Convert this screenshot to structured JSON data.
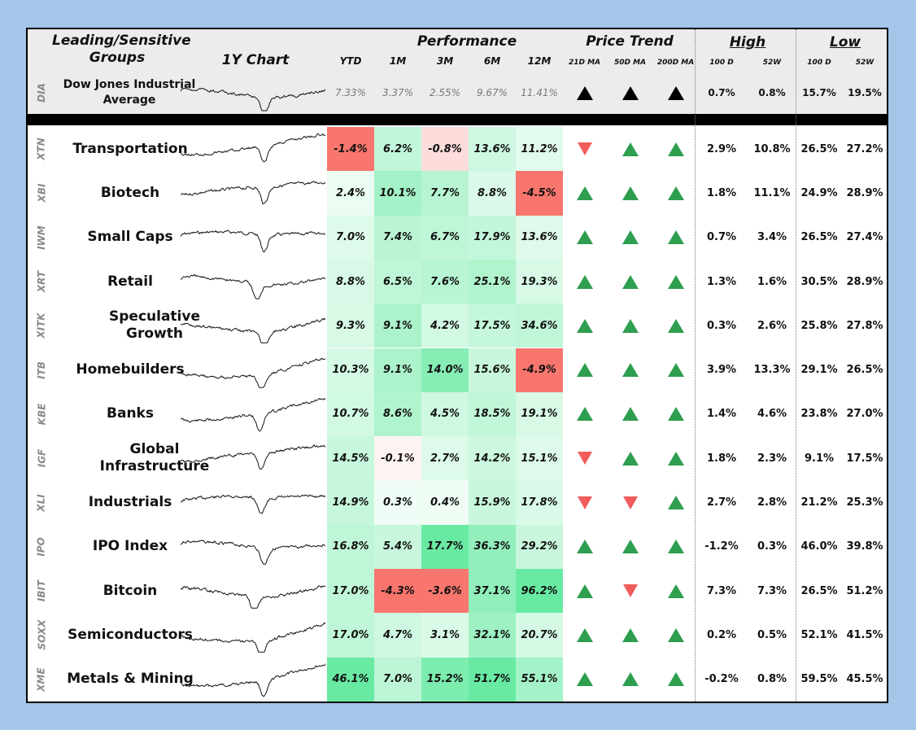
{
  "header": {
    "groups_title": "Leading/Sensitive Groups",
    "chart_title": "1Y Chart",
    "performance_title": "Performance",
    "price_trend_title": "Price Trend",
    "high_title": "High",
    "low_title": "Low",
    "perf_cols": [
      "YTD",
      "1M",
      "3M",
      "6M",
      "12M"
    ],
    "trend_cols": [
      "21D MA",
      "50D MA",
      "200D MA"
    ],
    "high_cols": [
      "100 D",
      "52W"
    ],
    "low_cols": [
      "100 D",
      "52W"
    ]
  },
  "benchmark": {
    "ticker": "DIA",
    "name": "Dow Jones Industrial Average",
    "perf": [
      "7.33%",
      "3.37%",
      "2.55%",
      "9.67%",
      "11.41%"
    ],
    "trend": [
      "up",
      "up",
      "up"
    ],
    "high": [
      "0.7%",
      "0.8%"
    ],
    "low": [
      "15.7%",
      "19.5%"
    ]
  },
  "colors": {
    "background": "#a3c6e9",
    "trend_up": "#2e9e4f",
    "trend_down": "#f25c5c",
    "negative_strong": "#f8766d",
    "negative_light": "#fddcdc"
  },
  "rows": [
    {
      "ticker": "XTN",
      "name": "Transportation",
      "perf": [
        "-1.4%",
        "6.2%",
        "-0.8%",
        "13.6%",
        "11.2%"
      ],
      "trend": [
        "down",
        "up",
        "up"
      ],
      "high": [
        "2.9%",
        "10.8%"
      ],
      "low": [
        "26.5%",
        "27.2%"
      ]
    },
    {
      "ticker": "XBI",
      "name": "Biotech",
      "perf": [
        "2.4%",
        "10.1%",
        "7.7%",
        "8.8%",
        "-4.5%"
      ],
      "trend": [
        "up",
        "up",
        "up"
      ],
      "high": [
        "1.8%",
        "11.1%"
      ],
      "low": [
        "24.9%",
        "28.9%"
      ]
    },
    {
      "ticker": "IWM",
      "name": "Small Caps",
      "perf": [
        "7.0%",
        "7.4%",
        "6.7%",
        "17.9%",
        "13.6%"
      ],
      "trend": [
        "up",
        "up",
        "up"
      ],
      "high": [
        "0.7%",
        "3.4%"
      ],
      "low": [
        "26.5%",
        "27.4%"
      ]
    },
    {
      "ticker": "XRT",
      "name": "Retail",
      "perf": [
        "8.8%",
        "6.5%",
        "7.6%",
        "25.1%",
        "19.3%"
      ],
      "trend": [
        "up",
        "up",
        "up"
      ],
      "high": [
        "1.3%",
        "1.6%"
      ],
      "low": [
        "30.5%",
        "28.9%"
      ]
    },
    {
      "ticker": "XITK",
      "name": "Speculative Growth",
      "perf": [
        "9.3%",
        "9.1%",
        "4.2%",
        "17.5%",
        "34.6%"
      ],
      "trend": [
        "up",
        "up",
        "up"
      ],
      "high": [
        "0.3%",
        "2.6%"
      ],
      "low": [
        "25.8%",
        "27.8%"
      ]
    },
    {
      "ticker": "ITB",
      "name": "Homebuilders",
      "perf": [
        "10.3%",
        "9.1%",
        "14.0%",
        "15.6%",
        "-4.9%"
      ],
      "trend": [
        "up",
        "up",
        "up"
      ],
      "high": [
        "3.9%",
        "13.3%"
      ],
      "low": [
        "29.1%",
        "26.5%"
      ]
    },
    {
      "ticker": "KBE",
      "name": "Banks",
      "perf": [
        "10.7%",
        "8.6%",
        "4.5%",
        "18.5%",
        "19.1%"
      ],
      "trend": [
        "up",
        "up",
        "up"
      ],
      "high": [
        "1.4%",
        "4.6%"
      ],
      "low": [
        "23.8%",
        "27.0%"
      ]
    },
    {
      "ticker": "IGF",
      "name": "Global Infrastructure",
      "perf": [
        "14.5%",
        "-0.1%",
        "2.7%",
        "14.2%",
        "15.1%"
      ],
      "trend": [
        "down",
        "up",
        "up"
      ],
      "high": [
        "1.8%",
        "2.3%"
      ],
      "low": [
        "9.1%",
        "17.5%"
      ]
    },
    {
      "ticker": "XLI",
      "name": "Industrials",
      "perf": [
        "14.9%",
        "0.3%",
        "0.4%",
        "15.9%",
        "17.8%"
      ],
      "trend": [
        "down",
        "down",
        "up"
      ],
      "high": [
        "2.7%",
        "2.8%"
      ],
      "low": [
        "21.2%",
        "25.3%"
      ]
    },
    {
      "ticker": "IPO",
      "name": "IPO Index",
      "perf": [
        "16.8%",
        "5.4%",
        "17.7%",
        "36.3%",
        "29.2%"
      ],
      "trend": [
        "up",
        "up",
        "up"
      ],
      "high": [
        "-1.2%",
        "0.3%"
      ],
      "low": [
        "46.0%",
        "39.8%"
      ]
    },
    {
      "ticker": "IBIT",
      "name": "Bitcoin",
      "perf": [
        "17.0%",
        "-4.3%",
        "-3.6%",
        "37.1%",
        "96.2%"
      ],
      "trend": [
        "up",
        "down",
        "up"
      ],
      "high": [
        "7.3%",
        "7.3%"
      ],
      "low": [
        "26.5%",
        "51.2%"
      ]
    },
    {
      "ticker": "SOXX",
      "name": "Semiconductors",
      "perf": [
        "17.0%",
        "4.7%",
        "3.1%",
        "32.1%",
        "20.7%"
      ],
      "trend": [
        "up",
        "up",
        "up"
      ],
      "high": [
        "0.2%",
        "0.5%"
      ],
      "low": [
        "52.1%",
        "41.5%"
      ]
    },
    {
      "ticker": "XME",
      "name": "Metals & Mining",
      "perf": [
        "46.1%",
        "7.0%",
        "15.2%",
        "51.7%",
        "55.1%"
      ],
      "trend": [
        "up",
        "up",
        "up"
      ],
      "high": [
        "-0.2%",
        "0.8%"
      ],
      "low": [
        "59.5%",
        "45.5%"
      ]
    }
  ]
}
